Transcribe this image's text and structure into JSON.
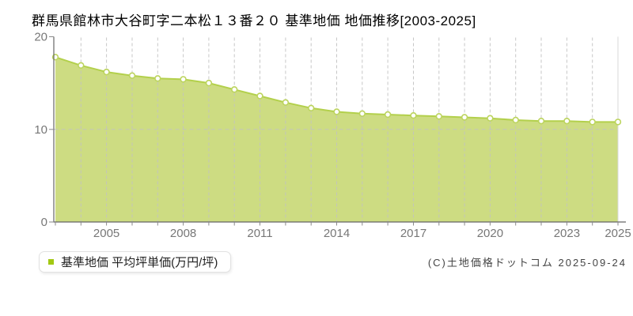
{
  "chart_data": {
    "type": "area",
    "title": "群馬県館林市大谷町字二本松１３番２０ 基準地価 地価推移[2003-2025]",
    "series_name": "基準地価 平均坪単価(万円/坪)",
    "x": [
      2003,
      2004,
      2005,
      2006,
      2007,
      2008,
      2009,
      2010,
      2011,
      2012,
      2013,
      2014,
      2015,
      2016,
      2017,
      2018,
      2019,
      2020,
      2021,
      2022,
      2023,
      2024,
      2025
    ],
    "values": [
      17.8,
      16.9,
      16.2,
      15.8,
      15.5,
      15.4,
      15.0,
      14.3,
      13.6,
      12.9,
      12.3,
      11.9,
      11.7,
      11.6,
      11.5,
      11.4,
      11.3,
      11.2,
      11.0,
      10.9,
      10.9,
      10.8,
      10.8
    ],
    "ylim": [
      0,
      20
    ],
    "y_ticks": [
      0,
      10,
      20
    ],
    "y_gridlines": [
      10
    ],
    "x_tick_labels": [
      "2005",
      "2008",
      "2011",
      "2014",
      "2017",
      "2020",
      "2023",
      "2025"
    ],
    "grid": "dashed vertical line per year, dashed horizontal at 10",
    "legend_position": "bottom-left",
    "ylabel": "",
    "xlabel": ""
  },
  "legend": {
    "label": "基準地価 平均坪単価(万円/坪)"
  },
  "footer": {
    "copyright": "(C)土地価格ドットコム 2025-09-24"
  },
  "colors": {
    "area": "#cddc82",
    "line": "#b3d04c",
    "marker_fill": "#ffffff",
    "marker_stroke": "#bcd45e",
    "legend_swatch": "#a2c813",
    "grid": "#c2c2c2",
    "right_border": "#d8d8d8",
    "axis": "#666666",
    "tick": "#8a8a8a",
    "tick_label": "#777777",
    "title_text": "#000000",
    "copyright_text": "#444444"
  }
}
